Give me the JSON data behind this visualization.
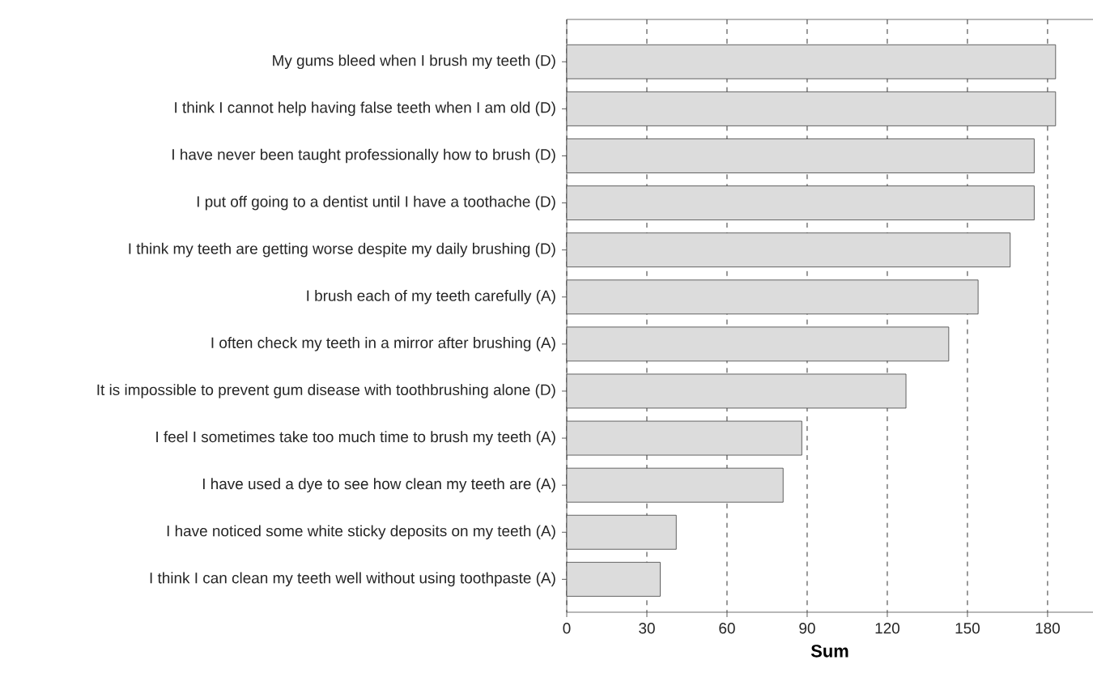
{
  "chart_data": {
    "type": "bar",
    "orientation": "horizontal",
    "xlabel": "Sum",
    "categories": [
      "My gums bleed when I brush my teeth (D)",
      "I think I cannot help having false teeth when I am old (D)",
      "I have never been taught professionally how to brush (D)",
      "I put off going to a dentist until I have a toothache (D)",
      "I think my teeth are getting worse despite my daily brushing (D)",
      "I brush each of my teeth carefully (A)",
      "I often check my teeth in a mirror after brushing (A)",
      "It is impossible to prevent gum disease with toothbrushing alone (D)",
      "I feel I sometimes take too much time to brush my teeth (A)",
      "I have used a dye to see how clean my teeth are (A)",
      "I have noticed some white sticky deposits on my teeth (A)",
      "I think I can clean my teeth well without using toothpaste (A)"
    ],
    "values": [
      183,
      183,
      175,
      175,
      166,
      154,
      143,
      127,
      88,
      81,
      41,
      35
    ],
    "color": "#dcdcdc",
    "xlim": [
      0,
      197
    ],
    "xticks": [
      0,
      30,
      60,
      90,
      120,
      150,
      180
    ],
    "grid": "x"
  }
}
